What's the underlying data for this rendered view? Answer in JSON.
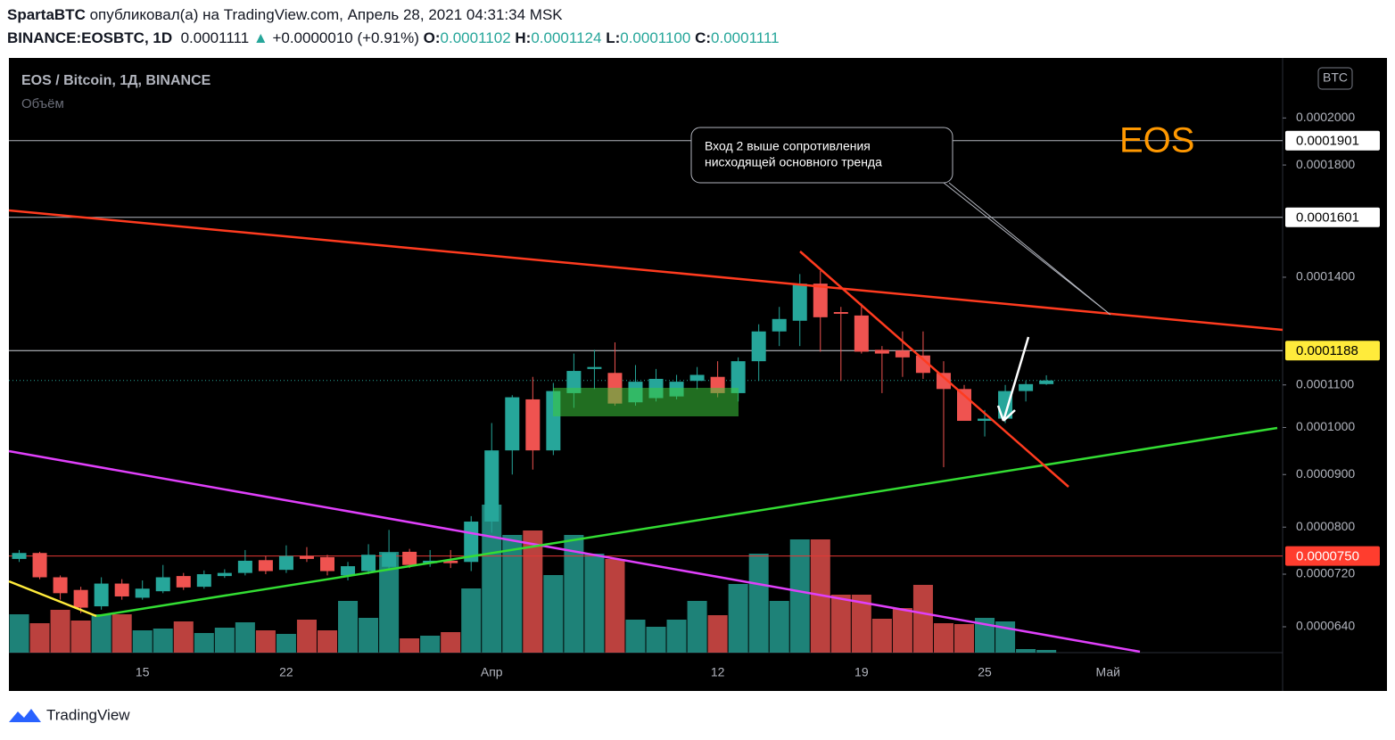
{
  "header": {
    "author": "SpartaBTC",
    "published": "опубликовал(а) на TradingView.com, Апрель 28, 2021 04:31:34 MSK",
    "symbol": "BINANCE:EOSBTC, 1D",
    "last": "0.0001111",
    "change": "+0.0000010 (+0.91%)",
    "ohlc": [
      {
        "label": "O:",
        "value": "0.0001102"
      },
      {
        "label": "H:",
        "value": "0.0001124"
      },
      {
        "label": "L:",
        "value": "0.0001100"
      },
      {
        "label": "C:",
        "value": "0.0001111"
      }
    ]
  },
  "chart_data": {
    "type": "candlestick",
    "title": "EOS / Bitcoin, 1Д, BINANCE",
    "subtitle": "Объём",
    "currency": "BTC",
    "categories": [
      null,
      null,
      null,
      null,
      null,
      null,
      "15",
      null,
      null,
      null,
      null,
      null,
      null,
      "22",
      null,
      null,
      null,
      null,
      null,
      null,
      null,
      null,
      null,
      "Апр",
      null,
      null,
      null,
      null,
      null,
      null,
      null,
      null,
      null,
      null,
      "12",
      null,
      null,
      null,
      null,
      null,
      null,
      "19",
      null,
      null,
      null,
      null,
      null,
      "25",
      null,
      null,
      null,
      null,
      null,
      "Май",
      null,
      null,
      null,
      null,
      null,
      null,
      null,
      null
    ],
    "open": [
      7.45e-05,
      7.55e-05,
      7.15e-05,
      6.95e-05,
      6.7e-05,
      7.05e-05,
      6.83e-05,
      6.93e-05,
      7.17e-05,
      7e-05,
      7.17e-05,
      7.22e-05,
      7.43e-05,
      7.27e-05,
      7.5e-05,
      7.48e-05,
      7.18e-05,
      7.25e-05,
      7.32e-05,
      7.57e-05,
      7.38e-05,
      7.42e-05,
      7.4e-05,
      8.1e-05,
      9.5e-05,
      0.0001065,
      9.5e-05,
      0.000108,
      0.000114,
      0.000113,
      0.0001058,
      0.0001068,
      0.0001072,
      0.000111,
      0.000112,
      0.000108,
      0.000116,
      0.000124,
      0.000127,
      0.000138,
      0.0001295,
      0.0001285,
      0.000119,
      0.0001188,
      0.0001175,
      0.000113,
      0.000109,
      0.0001015,
      0.000102,
      0.0001085,
      0.0001102,
      null,
      null,
      null,
      null,
      null,
      null,
      null,
      null,
      null,
      null,
      null
    ],
    "high": [
      7.6e-05,
      7.57e-05,
      7.18e-05,
      7e-05,
      7.15e-05,
      7.12e-05,
      7.1e-05,
      7.35e-05,
      7.22e-05,
      7.26e-05,
      7.28e-05,
      7.6e-05,
      7.5e-05,
      7.68e-05,
      7.65e-05,
      7.52e-05,
      7.4e-05,
      7.7e-05,
      7.95e-05,
      7.62e-05,
      7.6e-05,
      7.6e-05,
      8.2e-05,
      0.000101,
      0.0001075,
      0.000112,
      0.0001105,
      0.000118,
      0.000119,
      0.000121,
      0.000115,
      0.000114,
      0.0001125,
      0.0001145,
      0.000116,
      0.000117,
      0.000126,
      0.000131,
      0.000141,
      0.000142,
      0.000131,
      0.000132,
      0.00012,
      0.000124,
      0.000124,
      0.000116,
      0.00011,
      0.000104,
      0.00011,
      0.000111,
      0.0001124,
      null,
      null,
      null,
      null,
      null,
      null,
      null,
      null,
      null,
      null,
      null
    ],
    "low": [
      7.4e-05,
      7.12e-05,
      6.8e-05,
      6.6e-05,
      6.65e-05,
      6.8e-05,
      6.8e-05,
      6.9e-05,
      6.95e-05,
      6.97e-05,
      7.14e-05,
      7.18e-05,
      7.2e-05,
      7.22e-05,
      7.4e-05,
      7.18e-05,
      7.1e-05,
      7.2e-05,
      7.28e-05,
      7.3e-05,
      7.32e-05,
      7.3e-05,
      7.25e-05,
      7.9e-05,
      9e-05,
      9.1e-05,
      9.4e-05,
      0.0001045,
      0.000109,
      0.000105,
      0.000105,
      0.000106,
      0.0001065,
      0.000109,
      0.000107,
      0.000106,
      0.000111,
      0.00012,
      0.00012,
      0.0001185,
      0.000111,
      0.000118,
      0.000108,
      0.000112,
      0.0001115,
      9.15e-05,
      0.0001015,
      9.8e-05,
      0.000101,
      0.000106,
      0.00011,
      null,
      null,
      null,
      null,
      null,
      null,
      null,
      null,
      null,
      null,
      null
    ],
    "close": [
      7.55e-05,
      7.15e-05,
      6.9e-05,
      6.68e-05,
      7.05e-05,
      6.85e-05,
      6.97e-05,
      7.15e-05,
      6.99e-05,
      7.2e-05,
      7.22e-05,
      7.42e-05,
      7.25e-05,
      7.5e-05,
      7.45e-05,
      7.25e-05,
      7.33e-05,
      7.52e-05,
      7.55e-05,
      7.35e-05,
      7.42e-05,
      7.38e-05,
      8.1e-05,
      9.5e-05,
      0.000107,
      9.5e-05,
      0.0001085,
      0.0001135,
      0.0001145,
      0.0001055,
      0.0001108,
      0.0001115,
      0.0001108,
      0.0001125,
      0.000108,
      0.000116,
      0.000124,
      0.0001275,
      0.000138,
      0.000128,
      0.000129,
      0.0001185,
      0.000118,
      0.000117,
      0.000113,
      0.000109,
      0.0001015,
      0.000102,
      0.0001085,
      0.0001102,
      0.0001111,
      null,
      null,
      null,
      null,
      null,
      null,
      null,
      null,
      null,
      null,
      null
    ],
    "volume": [
      43,
      33,
      48,
      36,
      43,
      43,
      25,
      27,
      35,
      22,
      28,
      34,
      25,
      21,
      37,
      25,
      58,
      39,
      113,
      16,
      19,
      23,
      72,
      166,
      132,
      137,
      87,
      132,
      111,
      105,
      37,
      29,
      37,
      58,
      42,
      77,
      111,
      58,
      127,
      127,
      65,
      65,
      38,
      50,
      76,
      33,
      32,
      39,
      35,
      4,
      3,
      null,
      null,
      null,
      null,
      null,
      null,
      null,
      null,
      null,
      null,
      null
    ],
    "vlim": [
      0,
      200
    ],
    "up_color": "#26a69a",
    "down_color": "#ef5350",
    "log_scale": true,
    "ylim": [
      6.04e-05,
      0.0002274
    ],
    "yticks": [
      {
        "value": 6.4e-05,
        "label": "0.0000640"
      },
      {
        "value": 7.2e-05,
        "label": "0.0000720"
      },
      {
        "value": 8e-05,
        "label": "0.0000800"
      },
      {
        "value": 9e-05,
        "label": "0.0000900"
      },
      {
        "value": 0.0001,
        "label": "0.0001000"
      },
      {
        "value": 0.00011,
        "label": "0.0001100"
      },
      {
        "value": 0.00014,
        "label": "0.0001400"
      },
      {
        "value": 0.00018,
        "label": "0.0001800"
      },
      {
        "value": 0.0002,
        "label": "0.0002000"
      }
    ],
    "price_lines": [
      {
        "value": 0.0001901,
        "label": "0.0001901",
        "color": "#b2b5be",
        "label_bg": "#ffffff",
        "label_fg": "#000000"
      },
      {
        "value": 0.0001601,
        "label": "0.0001601",
        "color": "#b2b5be",
        "label_bg": "#ffffff",
        "label_fg": "#000000"
      },
      {
        "value": 0.0001188,
        "label": "0.0001188",
        "color": "#d1d4dc",
        "label_bg": "#ffeb3b",
        "label_fg": "#000000"
      },
      {
        "value": 7.5e-05,
        "label": "0.0000750",
        "color": "#e53935",
        "label_bg": "#ff3d2e",
        "label_fg": "#ffffff"
      }
    ],
    "annotations": {
      "callout": [
        "Вход 2 выше сопротивления",
        "нисходящей основного тренда"
      ],
      "label": "EOS"
    }
  },
  "footer": {
    "brand": "TradingView"
  }
}
